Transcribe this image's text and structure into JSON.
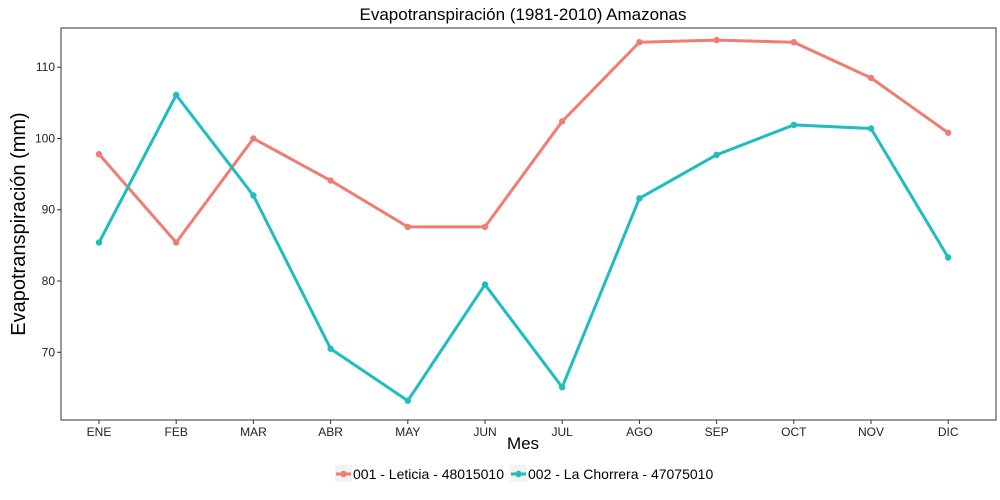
{
  "chart_data": {
    "type": "line",
    "title": "Evapotranspiración (1981-2010)  Amazonas",
    "xlabel": "Mes",
    "ylabel": "Evapotranspiración  (mm)",
    "categories": [
      "ENE",
      "FEB",
      "MAR",
      "ABR",
      "MAY",
      "JUN",
      "JUL",
      "AGO",
      "SEP",
      "OCT",
      "NOV",
      "DIC"
    ],
    "ylim": [
      60.5,
      115.5
    ],
    "yticks": [
      70,
      80,
      90,
      100,
      110
    ],
    "grid": false,
    "legend_position": "bottom",
    "series": [
      {
        "name": "001 - Leticia - 48015010",
        "color": "#F07C72",
        "values": [
          97.8,
          85.4,
          100.0,
          94.1,
          87.6,
          87.6,
          102.4,
          113.5,
          113.8,
          113.5,
          108.5,
          100.8
        ]
      },
      {
        "name": "002 - La Chorrera - 47075010",
        "color": "#1EBDC1",
        "values": [
          85.4,
          106.1,
          92.0,
          70.5,
          63.2,
          79.5,
          65.1,
          91.6,
          97.7,
          101.9,
          101.4,
          83.3
        ]
      }
    ]
  }
}
